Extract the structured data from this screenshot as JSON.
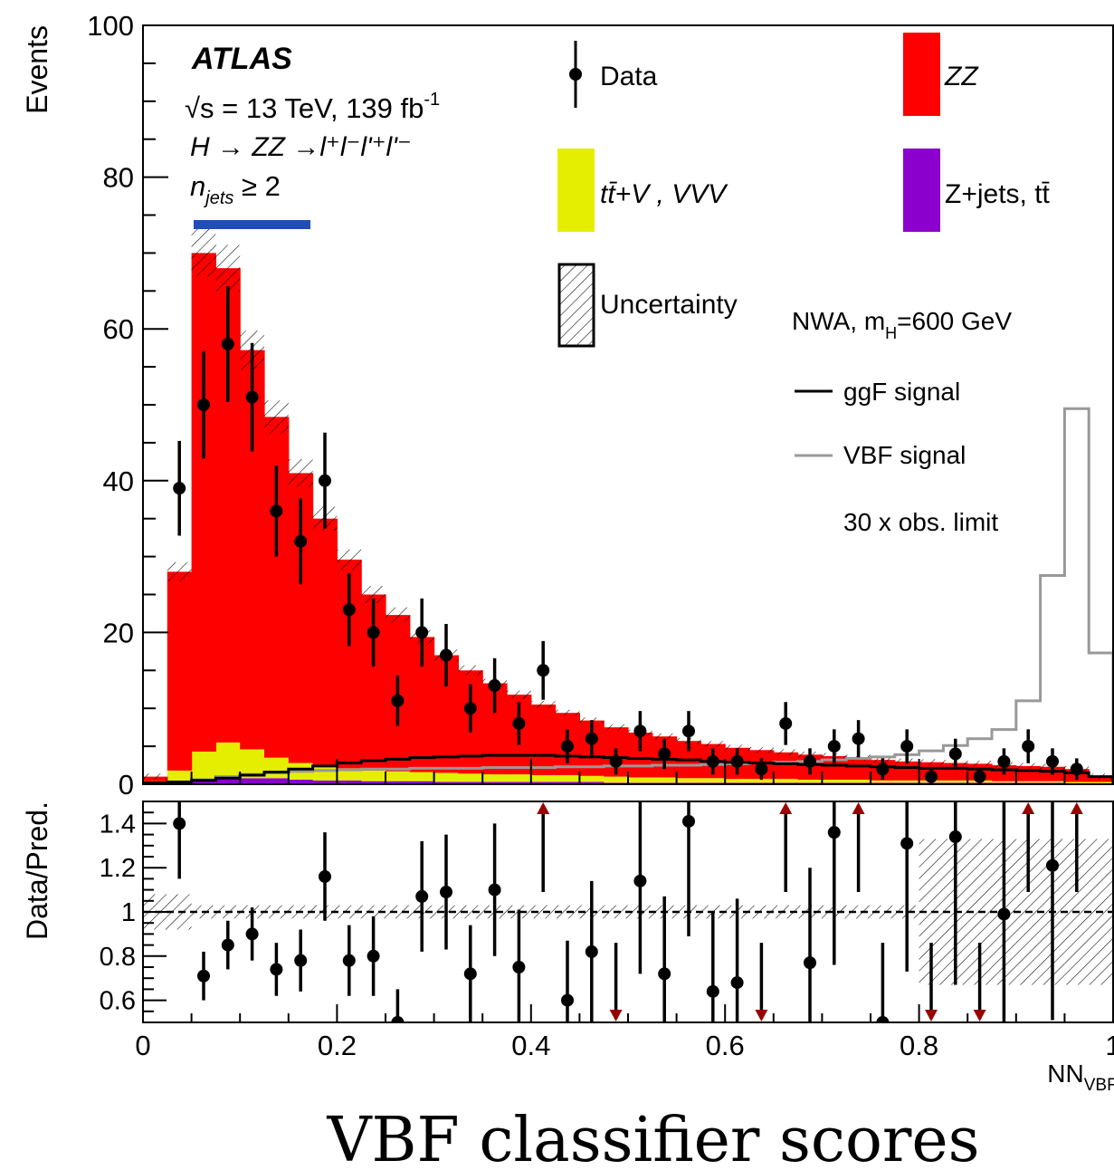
{
  "chart_data": {
    "type": "histogram",
    "experiment": "ATLAS",
    "sqrt_s": "13 TeV",
    "luminosity": "139 fb",
    "lumi_exponent": "-1",
    "process_label": "H → ZZ →l⁺l⁻l'⁺l'⁻",
    "category_label": "≥ 2",
    "signal_model": "NWA, m",
    "signal_mass": "=600 GeV",
    "signal_scale": "30 x obs. limit",
    "ylabel": "Events",
    "ratio_ylabel": "Data/Pred.",
    "xlabel_main": "NN",
    "xlabel_sub": "VBF",
    "xlim": [
      0,
      1
    ],
    "ylim": [
      0,
      100
    ],
    "ratio_ylim": [
      0.5,
      1.5
    ],
    "x_ticks": [
      "0",
      "0.2",
      "0.4",
      "0.6",
      "0.8",
      "1"
    ],
    "y_ticks": [
      "0",
      "20",
      "40",
      "60",
      "80",
      "100"
    ],
    "ratio_ticks": [
      "0.6",
      "0.8",
      "1",
      "1.2",
      "1.4"
    ],
    "bin_edges": [
      0,
      0.025,
      0.05,
      0.075,
      0.1,
      0.125,
      0.15,
      0.175,
      0.2,
      0.225,
      0.25,
      0.275,
      0.3,
      0.325,
      0.35,
      0.375,
      0.4,
      0.425,
      0.45,
      0.475,
      0.5,
      0.525,
      0.55,
      0.575,
      0.6,
      0.625,
      0.65,
      0.675,
      0.7,
      0.725,
      0.75,
      0.775,
      0.8,
      0.825,
      0.85,
      0.875,
      0.9,
      0.925,
      0.95,
      0.975,
      1.0
    ],
    "series": [
      {
        "name": "Z+jets, tt̄",
        "color": "#8b00cc",
        "values": [
          0.3,
          0.3,
          0.5,
          0.7,
          0.8,
          0.8,
          0.6,
          0.5,
          0.5,
          0.4,
          0.4,
          0.4,
          0.3,
          0.3,
          0.3,
          0.3,
          0.3,
          0.3,
          0.3,
          0.2,
          0.2,
          0.2,
          0.2,
          0.2,
          0.2,
          0.2,
          0.2,
          0.2,
          0.2,
          0.2,
          0.2,
          0.2,
          0.2,
          0.2,
          0.2,
          0.2,
          0.2,
          0.2,
          0.1,
          0.1
        ]
      },
      {
        "name": "tt̄+V , VVV",
        "color": "#e6ee00",
        "values": [
          0.1,
          1.5,
          3.8,
          4.8,
          3.8,
          2.7,
          2.2,
          1.8,
          1.6,
          1.4,
          1.3,
          1.2,
          1.2,
          1.1,
          1.0,
          1.0,
          0.9,
          0.9,
          0.8,
          0.8,
          0.7,
          0.7,
          0.6,
          0.6,
          0.5,
          0.5,
          0.5,
          0.4,
          0.4,
          0.4,
          0.3,
          0.3,
          0.3,
          0.3,
          0.3,
          0.2,
          0.2,
          0.2,
          0.2,
          0.2
        ]
      },
      {
        "name": "ZZ",
        "color": "#ff0000",
        "values": [
          0.6,
          26.2,
          65.7,
          62.5,
          52.6,
          44.9,
          38.2,
          32.7,
          27.5,
          23.2,
          20.6,
          17.8,
          15.5,
          13.6,
          12.0,
          10.5,
          9.3,
          8.2,
          7.3,
          6.5,
          5.9,
          5.4,
          4.9,
          4.5,
          4.1,
          3.8,
          3.5,
          3.3,
          3.1,
          2.9,
          2.7,
          2.5,
          2.4,
          2.3,
          2.2,
          2.1,
          2.0,
          1.9,
          1.7,
          0.7
        ]
      }
    ],
    "uncertainty_label": "Uncertainty",
    "ggF_signal": {
      "name": "ggF signal",
      "color": "#000000",
      "values": [
        0.2,
        0.3,
        0.5,
        0.8,
        1.2,
        1.6,
        2.0,
        2.4,
        2.8,
        3.1,
        3.3,
        3.5,
        3.6,
        3.7,
        3.8,
        3.8,
        3.8,
        3.7,
        3.6,
        3.5,
        3.4,
        3.3,
        3.2,
        3.0,
        2.9,
        2.8,
        2.7,
        2.6,
        2.5,
        2.4,
        2.3,
        2.2,
        2.1,
        2.1,
        2.0,
        1.9,
        1.8,
        1.7,
        1.5,
        1.0
      ]
    },
    "VBF_signal": {
      "name": "VBF signal",
      "color": "#999999",
      "values": [
        0.1,
        0.3,
        0.6,
        1.0,
        1.3,
        1.5,
        1.7,
        1.8,
        1.9,
        2.0,
        2.0,
        2.1,
        2.1,
        2.1,
        2.2,
        2.2,
        2.2,
        2.3,
        2.3,
        2.4,
        2.4,
        2.5,
        2.5,
        2.6,
        2.7,
        2.8,
        2.9,
        3.0,
        3.2,
        3.4,
        3.6,
        3.9,
        4.4,
        5.1,
        6.0,
        7.2,
        11.0,
        27.5,
        49.5,
        17.3
      ]
    },
    "data": {
      "name": "Data",
      "x": [
        0.0375,
        0.0625,
        0.0875,
        0.1125,
        0.1375,
        0.1625,
        0.1875,
        0.2125,
        0.2375,
        0.2625,
        0.2875,
        0.3125,
        0.3375,
        0.3625,
        0.3875,
        0.4125,
        0.4375,
        0.4625,
        0.4875,
        0.5125,
        0.5375,
        0.5625,
        0.5875,
        0.6125,
        0.6375,
        0.6625,
        0.6875,
        0.7125,
        0.7375,
        0.7625,
        0.7875,
        0.8125,
        0.8375,
        0.8625,
        0.8875,
        0.9125,
        0.9375,
        0.9625
      ],
      "y": [
        39,
        50,
        58,
        51,
        36,
        32,
        40,
        23,
        20,
        11,
        20,
        17,
        10,
        13,
        8,
        15,
        5,
        6,
        3,
        7,
        4,
        7,
        3,
        3,
        2,
        8,
        3,
        5,
        6,
        2,
        5,
        1,
        4,
        1,
        3,
        5,
        3,
        2
      ]
    },
    "ratio": {
      "x": [
        0.0375,
        0.0625,
        0.0875,
        0.1125,
        0.1375,
        0.1625,
        0.1875,
        0.2125,
        0.2375,
        0.2625,
        0.2875,
        0.3125,
        0.3375,
        0.3625,
        0.3875,
        0.4375,
        0.4625,
        0.5125,
        0.5375,
        0.5625,
        0.5875,
        0.6125,
        0.6875,
        0.7125,
        0.7625,
        0.7875,
        0.8375,
        0.8875,
        0.9375
      ],
      "y": [
        1.4,
        0.71,
        0.85,
        0.9,
        0.74,
        0.78,
        1.16,
        0.78,
        0.8,
        0.5,
        1.07,
        1.09,
        0.72,
        1.1,
        0.75,
        0.6,
        0.82,
        1.14,
        0.72,
        1.41,
        0.64,
        0.68,
        0.77,
        1.36,
        0.5,
        1.31,
        1.34,
        0.99,
        1.21
      ],
      "err_lo": [
        0.25,
        0.11,
        0.11,
        0.12,
        0.12,
        0.14,
        0.2,
        0.16,
        0.18,
        0.15,
        0.25,
        0.26,
        0.22,
        0.3,
        0.26,
        0.27,
        0.32,
        0.42,
        0.35,
        0.52,
        0.36,
        0.38,
        0.43,
        0.6,
        0.36,
        0.58,
        0.67,
        0.6,
        0.7
      ],
      "err_hi": [
        0.25,
        0.11,
        0.11,
        0.12,
        0.12,
        0.14,
        0.2,
        0.16,
        0.18,
        0.15,
        0.25,
        0.26,
        0.22,
        0.3,
        0.26,
        0.27,
        0.32,
        0.42,
        0.35,
        0.52,
        0.36,
        0.38,
        0.43,
        0.6,
        0.36,
        0.58,
        0.67,
        0.6,
        0.7
      ],
      "up_arrows_x": [
        0.4125,
        0.6625,
        0.7375,
        0.9125,
        0.9625
      ],
      "down_arrows_x": [
        0.4875,
        0.6375,
        0.8125,
        0.8625
      ],
      "arrow_color": "#990000"
    }
  },
  "caption": "VBF classifier scores"
}
